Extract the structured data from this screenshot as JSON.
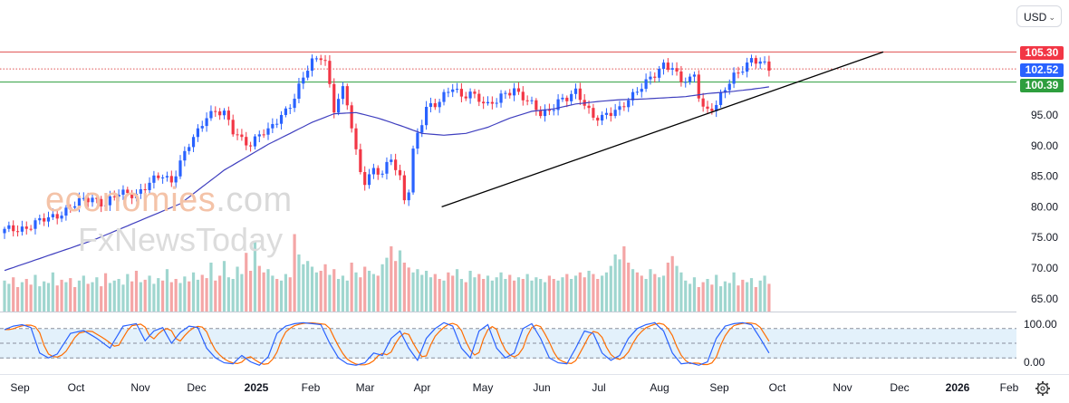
{
  "currency_selector": {
    "label": "USD",
    "icon": "chevron-down-icon"
  },
  "watermark": {
    "line1_main": "economies",
    "line1_suffix": ".com",
    "line2": "FxNewsToday"
  },
  "settings_icon": "gear-icon",
  "colors": {
    "up": "#2962ff",
    "down": "#f23645",
    "vol_up": "#9fd6cf",
    "vol_down": "#f4a6a6",
    "ma": "#3f3fbf",
    "resistance": "#e05050",
    "support": "#2e9e3e",
    "trend": "#000000",
    "stoch_k": "#2962ff",
    "stoch_d": "#ff6d00",
    "stoch_band": "#e3f1fb",
    "last_price": "#2962ff"
  },
  "price_labels": [
    {
      "value": "105.30",
      "role": "resistance",
      "color": "#f23645"
    },
    {
      "value": "102.52",
      "role": "last-price",
      "color": "#2962ff"
    },
    {
      "value": "100.39",
      "role": "support",
      "color": "#2e9e3e"
    }
  ],
  "chart_data": {
    "type": "candlestick",
    "title": "",
    "currency": "USD",
    "x_axis_labels": [
      "Sep",
      "Oct",
      "Nov",
      "Dec",
      "2025",
      "Feb",
      "Mar",
      "Apr",
      "May",
      "Jun",
      "Jul",
      "Aug",
      "Sep",
      "Oct",
      "Nov",
      "Dec",
      "2026",
      "Feb"
    ],
    "y_axis_ticks": [
      "95.00",
      "90.00",
      "85.00",
      "80.00",
      "75.00",
      "70.00",
      "65.00"
    ],
    "ylim": [
      64,
      108
    ],
    "grid": false,
    "close_path": [
      [
        0,
        76
      ],
      [
        5,
        76.8
      ],
      [
        10,
        78
      ],
      [
        15,
        80
      ],
      [
        20,
        81.5
      ],
      [
        23,
        80.6
      ],
      [
        26,
        82
      ],
      [
        30,
        82.3
      ],
      [
        33,
        83.8
      ],
      [
        36,
        85
      ],
      [
        38,
        84.3
      ],
      [
        40,
        87.5
      ],
      [
        42,
        90
      ],
      [
        44,
        92
      ],
      [
        46,
        95
      ],
      [
        48,
        96
      ],
      [
        50,
        95.2
      ],
      [
        52,
        92
      ],
      [
        54,
        91
      ],
      [
        56,
        90.5
      ],
      [
        58,
        92
      ],
      [
        60,
        92
      ],
      [
        63,
        95
      ],
      [
        66,
        98
      ],
      [
        68,
        101
      ],
      [
        70,
        103.5
      ],
      [
        72,
        104.8
      ],
      [
        73,
        104
      ],
      [
        74,
        100
      ],
      [
        75,
        96
      ],
      [
        76,
        97.5
      ],
      [
        77,
        98.8
      ],
      [
        78,
        96.5
      ],
      [
        79,
        93
      ],
      [
        80,
        89
      ],
      [
        81,
        86
      ],
      [
        82,
        84.5
      ],
      [
        84,
        86
      ],
      [
        86,
        85
      ],
      [
        88,
        88
      ],
      [
        89,
        86.5
      ],
      [
        90,
        85
      ],
      [
        91,
        81.5
      ],
      [
        92,
        83
      ],
      [
        93,
        89
      ],
      [
        94,
        91.5
      ],
      [
        95,
        93.5
      ],
      [
        96,
        96
      ],
      [
        98,
        97
      ],
      [
        100,
        98.5
      ],
      [
        102,
        99.4
      ],
      [
        104,
        97.5
      ],
      [
        106,
        98.8
      ],
      [
        108,
        98
      ],
      [
        110,
        96.5
      ],
      [
        112,
        97
      ],
      [
        114,
        98.5
      ],
      [
        116,
        99.5
      ],
      [
        118,
        98
      ],
      [
        120,
        96.5
      ],
      [
        122,
        95
      ],
      [
        124,
        96
      ],
      [
        126,
        97.5
      ],
      [
        128,
        97.5
      ],
      [
        130,
        98.5
      ],
      [
        132,
        97
      ],
      [
        134,
        95
      ],
      [
        136,
        94.5
      ],
      [
        138,
        95
      ],
      [
        140,
        96
      ],
      [
        142,
        98
      ],
      [
        144,
        99
      ],
      [
        146,
        100
      ],
      [
        148,
        101.5
      ],
      [
        150,
        103.5
      ],
      [
        152,
        103
      ],
      [
        153,
        101.5
      ],
      [
        154,
        100.3
      ],
      [
        156,
        100.5
      ],
      [
        157,
        101.5
      ],
      [
        158,
        98.5
      ],
      [
        159,
        96.5
      ],
      [
        160,
        96
      ],
      [
        162,
        96.5
      ],
      [
        164,
        99
      ],
      [
        166,
        101.5
      ],
      [
        168,
        103
      ],
      [
        170,
        104
      ],
      [
        172,
        103.3
      ],
      [
        174,
        102.52
      ]
    ],
    "ma_path": [
      [
        0,
        69.6
      ],
      [
        20,
        74.5
      ],
      [
        40,
        80.5
      ],
      [
        50,
        86
      ],
      [
        60,
        90.2
      ],
      [
        70,
        93.8
      ],
      [
        75,
        95.2
      ],
      [
        80,
        95.4
      ],
      [
        85,
        94.5
      ],
      [
        90,
        93.3
      ],
      [
        95,
        92
      ],
      [
        100,
        91.7
      ],
      [
        105,
        92
      ],
      [
        110,
        93
      ],
      [
        115,
        94.5
      ],
      [
        120,
        95.6
      ],
      [
        125,
        96
      ],
      [
        130,
        96.8
      ],
      [
        135,
        97.2
      ],
      [
        140,
        97.5
      ],
      [
        145,
        97.6
      ],
      [
        150,
        97.8
      ],
      [
        155,
        98
      ],
      [
        160,
        98.5
      ],
      [
        165,
        98.8
      ],
      [
        170,
        99.2
      ],
      [
        174,
        99.6
      ]
    ],
    "horizontal_levels": [
      {
        "label": "105.30",
        "value": 105.3,
        "style": "solid",
        "color": "#e05050"
      },
      {
        "label": "102.52",
        "value": 102.52,
        "style": "dotted",
        "color": "#e05050"
      },
      {
        "label": "100.39",
        "value": 100.39,
        "style": "solid",
        "color": "#2e9e3e"
      }
    ],
    "trendline": {
      "from": {
        "x": 99.5,
        "y": 80.0
      },
      "to": {
        "x": 200,
        "y": 105.3
      }
    },
    "volume_profile": [
      38,
      34,
      42,
      30,
      36,
      40,
      33,
      45,
      31,
      37,
      35,
      48,
      32,
      39,
      36,
      41,
      30,
      38,
      44,
      34,
      36,
      42,
      31,
      47,
      35,
      38,
      40,
      33,
      46,
      37,
      50,
      36,
      39,
      44,
      34,
      41,
      38,
      52,
      36,
      40,
      35,
      43,
      37,
      48,
      39,
      45,
      41,
      60,
      38,
      44,
      62,
      42,
      40,
      55,
      46,
      72,
      50,
      85,
      56,
      48,
      52,
      44,
      40,
      38,
      46,
      42,
      95,
      70,
      58,
      62,
      55,
      48,
      50,
      58,
      45,
      52,
      40,
      44,
      38,
      60,
      48,
      42,
      55,
      50,
      46,
      44,
      58,
      66,
      80,
      62,
      75,
      60,
      54,
      48,
      52,
      45,
      50,
      42,
      46,
      40,
      38,
      48,
      44,
      52,
      40,
      36,
      50,
      42,
      46,
      40,
      44,
      38,
      42,
      48,
      40,
      45,
      38,
      42,
      40,
      46,
      38,
      42,
      40,
      36,
      44,
      40,
      38,
      42,
      46,
      40,
      44,
      48,
      42,
      50,
      46,
      40,
      44,
      48,
      56,
      70,
      64,
      80,
      60,
      52,
      48,
      44,
      40,
      52,
      46,
      42,
      44,
      60,
      68,
      56,
      48
    ],
    "oscillator": {
      "type": "stochastic",
      "y_axis_ticks": [
        "100.00",
        "0.00"
      ],
      "levels": [
        80,
        50,
        20
      ],
      "k": [
        [
          0,
          78
        ],
        [
          2,
          85
        ],
        [
          4,
          88
        ],
        [
          6,
          82
        ],
        [
          8,
          30
        ],
        [
          10,
          20
        ],
        [
          12,
          28
        ],
        [
          15,
          70
        ],
        [
          18,
          76
        ],
        [
          21,
          60
        ],
        [
          24,
          40
        ],
        [
          27,
          85
        ],
        [
          30,
          90
        ],
        [
          32,
          55
        ],
        [
          34,
          75
        ],
        [
          36,
          82
        ],
        [
          38,
          50
        ],
        [
          40,
          72
        ],
        [
          42,
          85
        ],
        [
          44,
          82
        ],
        [
          46,
          40
        ],
        [
          48,
          20
        ],
        [
          50,
          10
        ],
        [
          52,
          8
        ],
        [
          54,
          25
        ],
        [
          56,
          12
        ],
        [
          58,
          5
        ],
        [
          60,
          22
        ],
        [
          62,
          70
        ],
        [
          64,
          85
        ],
        [
          66,
          90
        ],
        [
          68,
          92
        ],
        [
          70,
          90
        ],
        [
          72,
          88
        ],
        [
          74,
          50
        ],
        [
          76,
          20
        ],
        [
          78,
          8
        ],
        [
          80,
          5
        ],
        [
          82,
          10
        ],
        [
          84,
          30
        ],
        [
          86,
          25
        ],
        [
          88,
          60
        ],
        [
          90,
          75
        ],
        [
          92,
          40
        ],
        [
          94,
          15
        ],
        [
          96,
          60
        ],
        [
          98,
          80
        ],
        [
          100,
          92
        ],
        [
          102,
          85
        ],
        [
          104,
          40
        ],
        [
          106,
          20
        ],
        [
          108,
          75
        ],
        [
          110,
          88
        ],
        [
          112,
          40
        ],
        [
          114,
          20
        ],
        [
          116,
          30
        ],
        [
          118,
          80
        ],
        [
          120,
          90
        ],
        [
          122,
          60
        ],
        [
          124,
          20
        ],
        [
          126,
          10
        ],
        [
          128,
          8
        ],
        [
          130,
          40
        ],
        [
          132,
          75
        ],
        [
          134,
          70
        ],
        [
          136,
          30
        ],
        [
          138,
          15
        ],
        [
          140,
          25
        ],
        [
          142,
          60
        ],
        [
          144,
          80
        ],
        [
          146,
          88
        ],
        [
          148,
          92
        ],
        [
          150,
          75
        ],
        [
          152,
          30
        ],
        [
          154,
          8
        ],
        [
          156,
          10
        ],
        [
          158,
          5
        ],
        [
          160,
          12
        ],
        [
          162,
          60
        ],
        [
          164,
          85
        ],
        [
          166,
          90
        ],
        [
          168,
          92
        ],
        [
          170,
          88
        ],
        [
          172,
          60
        ],
        [
          174,
          30
        ]
      ]
    }
  }
}
